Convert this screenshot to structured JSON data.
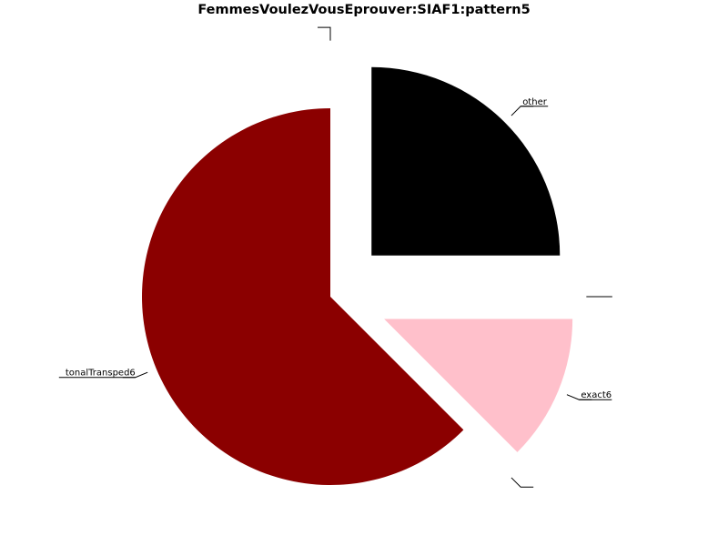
{
  "chart_data": {
    "type": "pie",
    "title": "FemmesVoulezVousEprouver:SIAF1:pattern5",
    "slices": [
      {
        "label": "other",
        "value": 25.0,
        "color": "#000000",
        "exploded": true
      },
      {
        "label": "",
        "value": 0.0,
        "color": "#ffffff",
        "exploded": true
      },
      {
        "label": "exact6",
        "value": 12.5,
        "color": "#ffc0cb",
        "exploded": true
      },
      {
        "label": "",
        "value": 0.0,
        "color": "#ffffff",
        "exploded": true
      },
      {
        "label": "tonalTransped6",
        "value": 62.5,
        "color": "#8b0000",
        "exploded": false
      },
      {
        "label": "",
        "value": 0.0,
        "color": "#ffffff",
        "exploded": true
      }
    ],
    "start_angle": "top",
    "direction": "clockwise"
  }
}
